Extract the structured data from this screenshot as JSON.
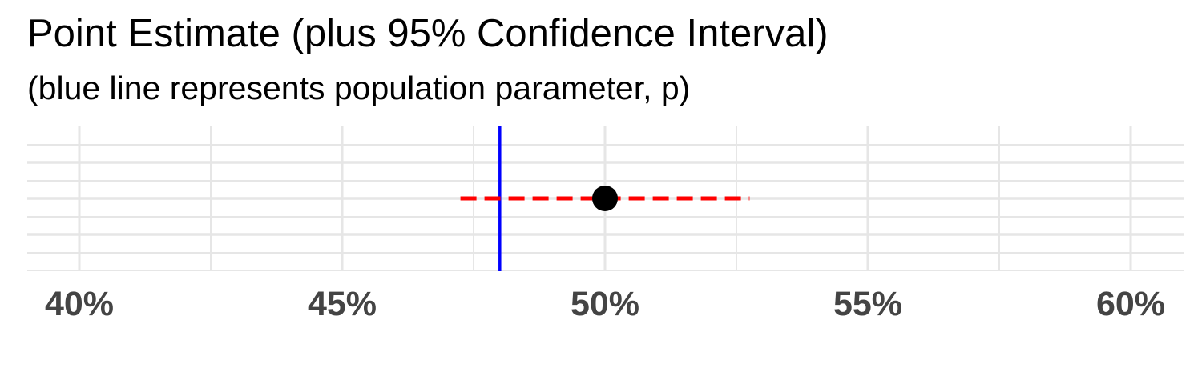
{
  "chart_data": {
    "type": "scatter",
    "title": "Point Estimate (plus 95% Confidence Interval)",
    "subtitle": "(blue line represents population parameter, p)",
    "xlabel": "",
    "ylabel": "",
    "xlim": [
      0.38,
      0.6098
    ],
    "x_ticks": [
      0.4,
      0.45,
      0.5,
      0.55,
      0.6
    ],
    "x_tick_labels": [
      "40%",
      "45%",
      "50%",
      "55%",
      "60%"
    ],
    "point_estimate": 0.5,
    "confidence_interval": [
      0.4725,
      0.5275
    ],
    "population_parameter": 0.48,
    "grid": true,
    "colors": {
      "point": "#000000",
      "interval": "#ff0000",
      "parameter_line": "#0000ff",
      "grid": "#e6e6e6",
      "tick_text": "#444444"
    }
  }
}
